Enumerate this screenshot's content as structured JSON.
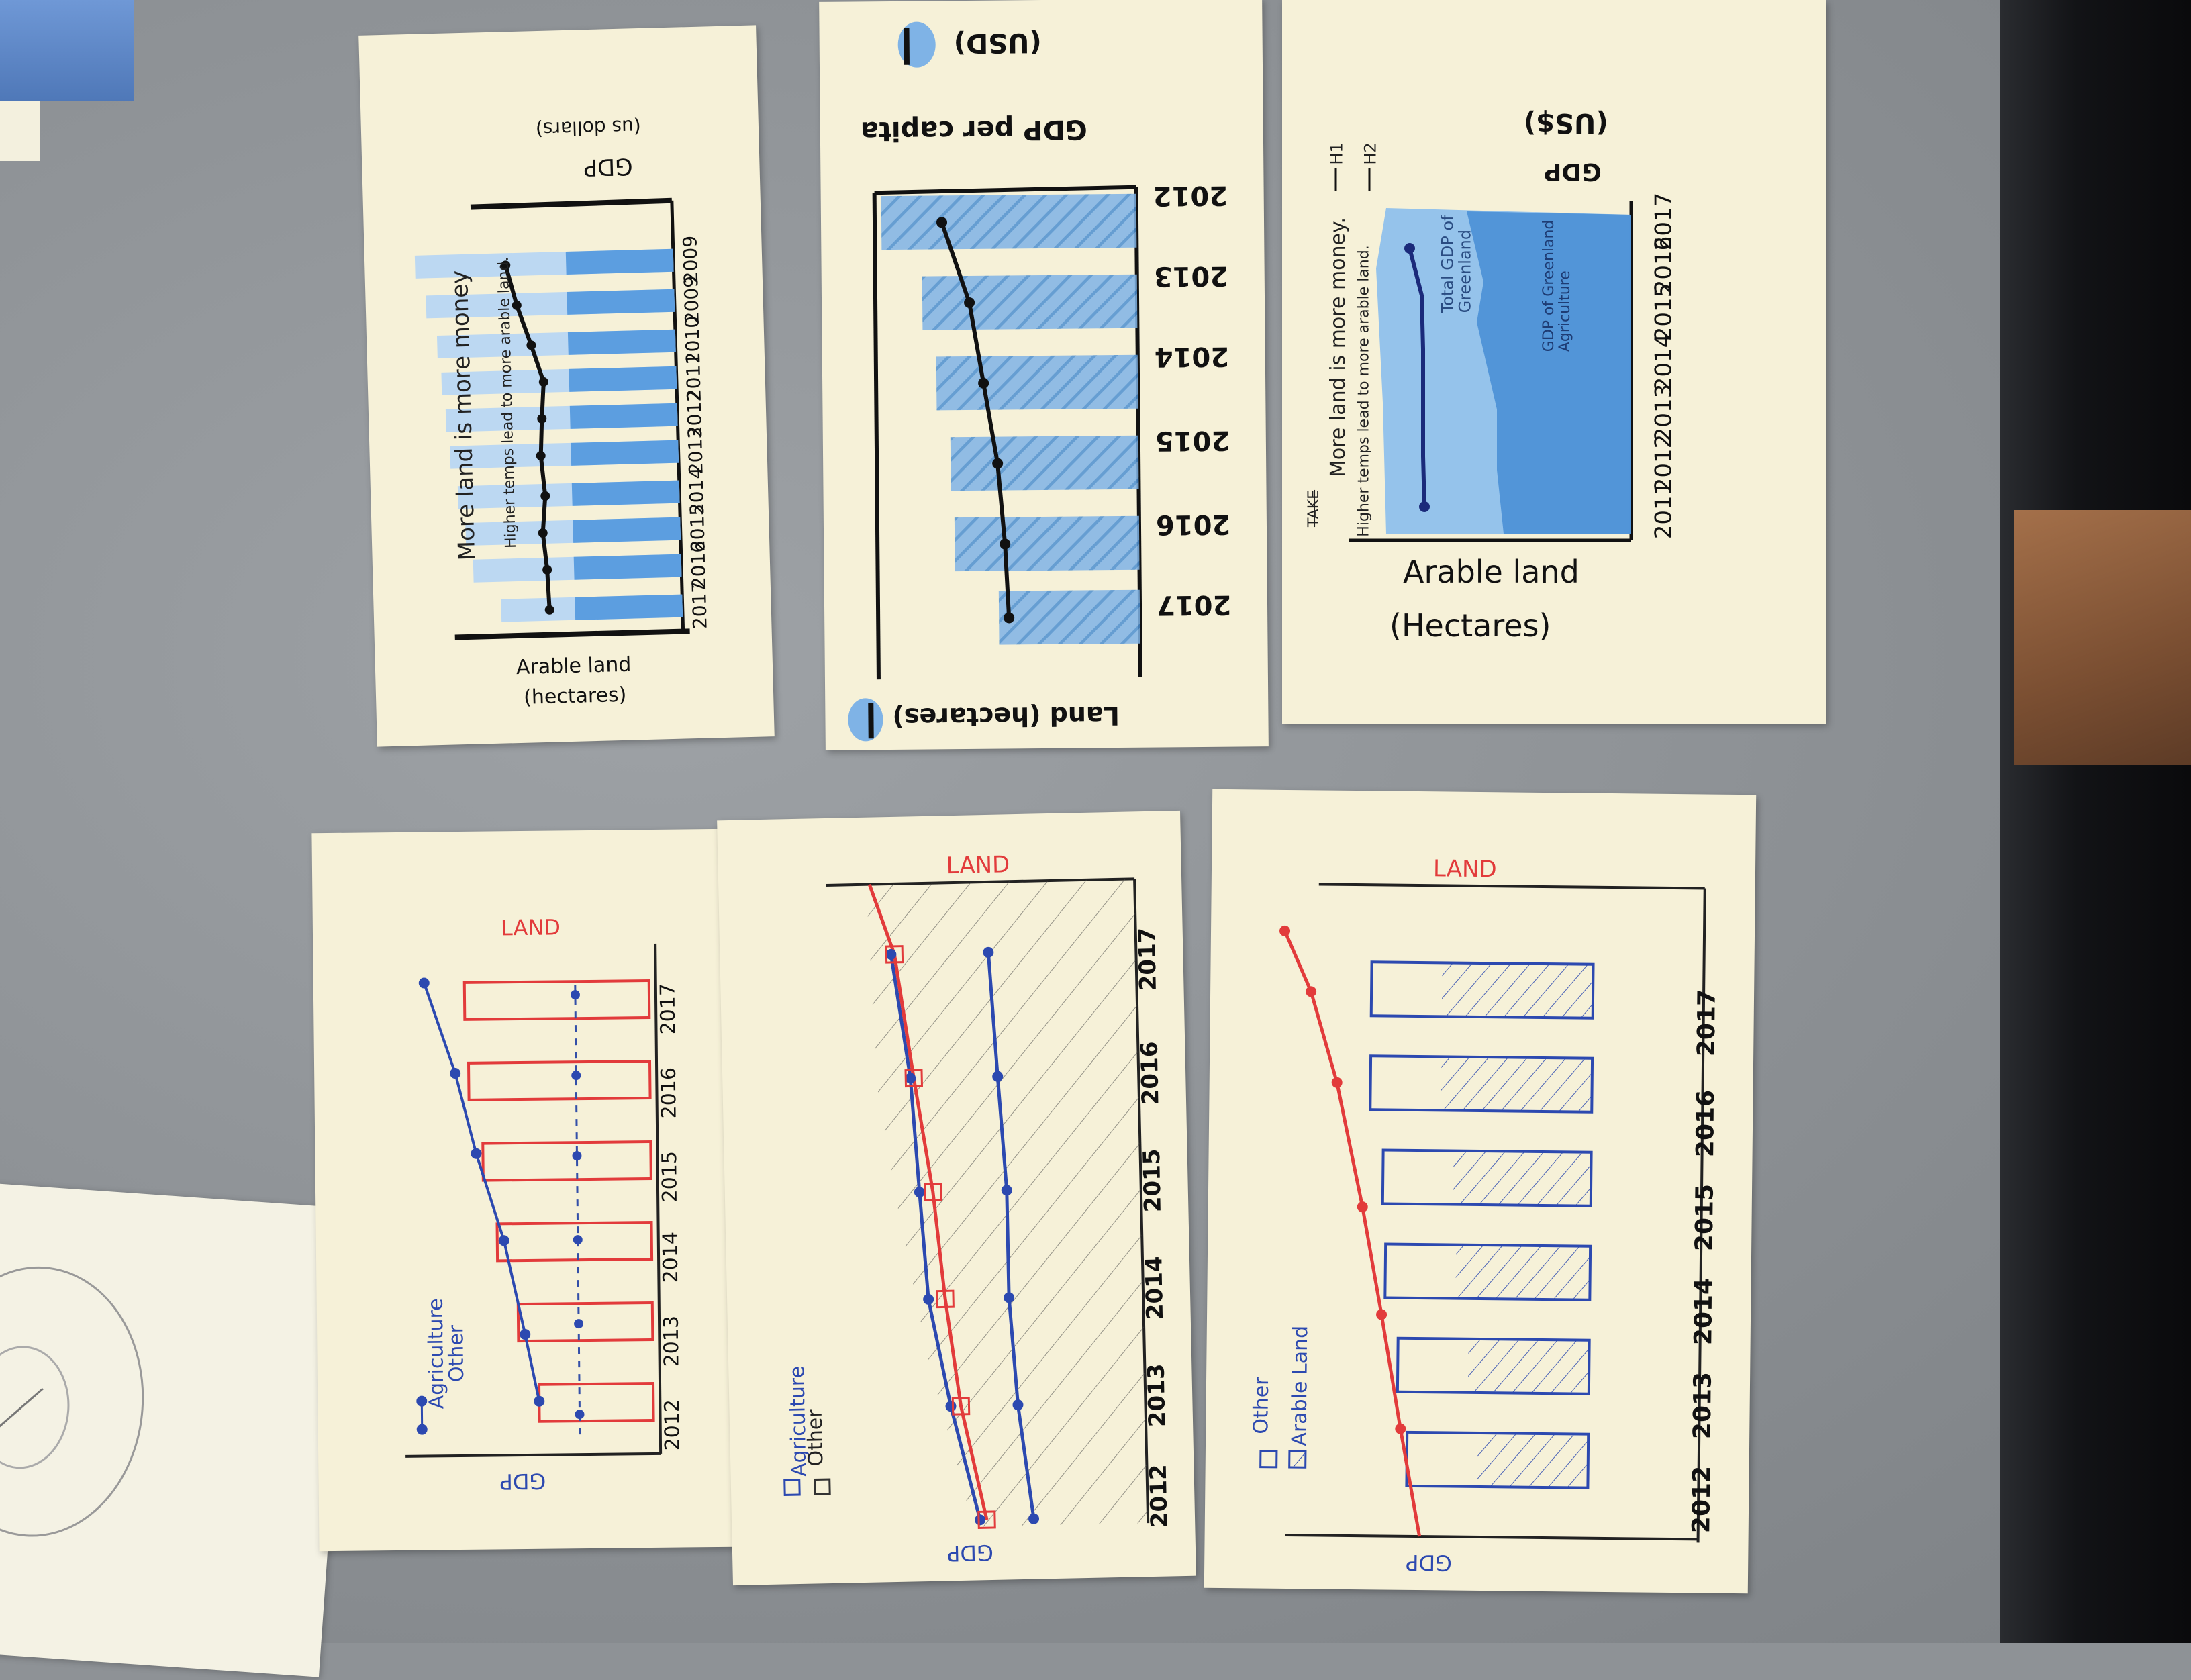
{
  "sketch1": {
    "title": "More land is more money",
    "subtitle": "Higher temps lead to more arable land.",
    "axis_gdp": "GDP",
    "axis_gdp_unit": "(us dollars)",
    "axis_land": "Arable land",
    "axis_land_unit": "(hectares)",
    "years": [
      "2009",
      "2009",
      "2010",
      "2011",
      "2012",
      "2013",
      "2014",
      "2015",
      "2016",
      "2017"
    ]
  },
  "sketch2": {
    "axis_gdp": "GDP per capita",
    "axis_gdp_unit": "(USD)",
    "axis_land": "Land (hectares)",
    "years": [
      "2012",
      "2013",
      "2014",
      "2015",
      "2016",
      "2017"
    ]
  },
  "sketch3": {
    "title": "More land is more money.",
    "subtitle": "Higher temps lead to more arable land.",
    "h1": "H1",
    "h2": "H2",
    "crossed": "TAKE",
    "axis_gdp": "GDP",
    "axis_gdp_unit": "(US$)",
    "axis_land": "Arable land",
    "axis_land_unit": "(Hectares)",
    "label_total": "Total GDP of Greenland",
    "label_agri": "GDP of Greenland Agriculture",
    "years": [
      "2011",
      "2012",
      "2013",
      "2014",
      "2015",
      "2016",
      "2017"
    ]
  },
  "sketch4": {
    "land": "LAND",
    "gdp": "GDP",
    "legend_a": "Agriculture",
    "legend_b": "Other",
    "years": [
      "2012",
      "2013",
      "2014",
      "2015",
      "2016",
      "2017"
    ]
  },
  "sketch5": {
    "land": "LAND",
    "gdp": "GDP",
    "legend_a": "Agriculture",
    "legend_b": "Other",
    "years": [
      "2012",
      "2013",
      "2014",
      "2015",
      "2016",
      "2017"
    ]
  },
  "sketch6": {
    "land": "LAND",
    "gdp": "GDP",
    "legend_a": "Other",
    "legend_b": "Arable Land",
    "years": [
      "2012",
      "2013",
      "2014",
      "2015",
      "2016",
      "2017"
    ]
  }
}
